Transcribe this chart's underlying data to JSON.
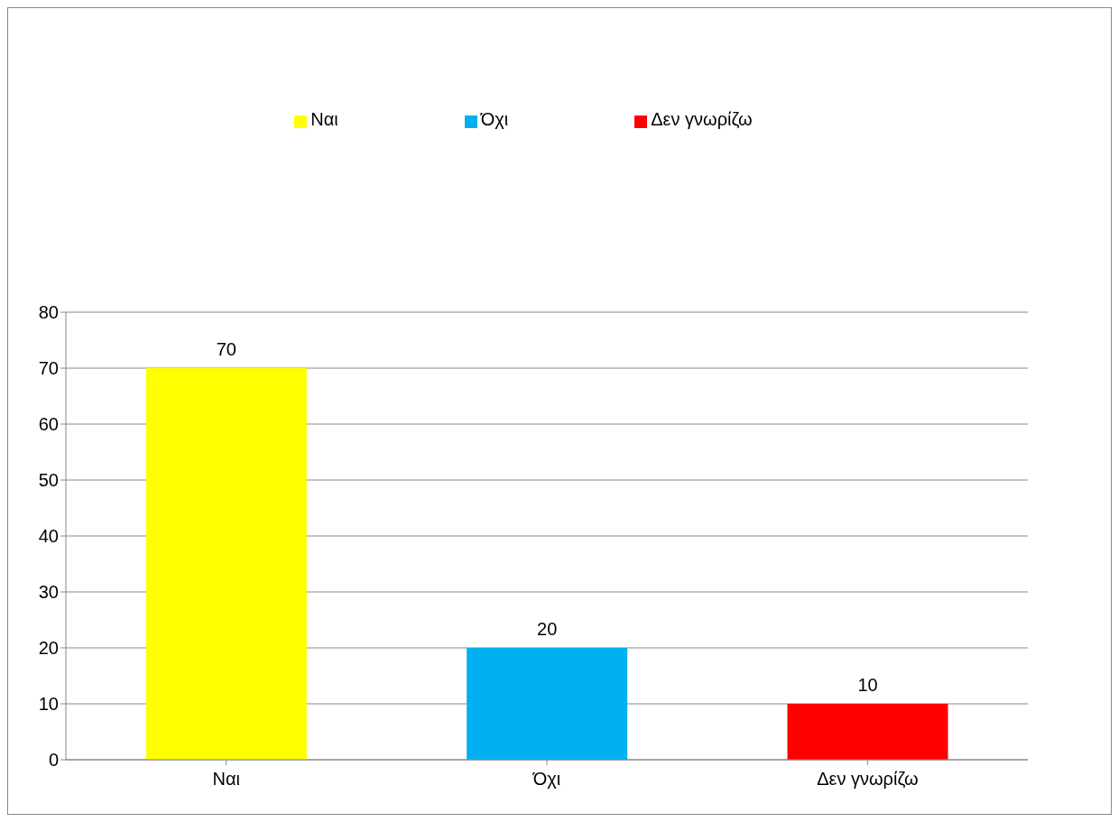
{
  "chart_data": {
    "type": "bar",
    "categories": [
      "Ναι",
      "Όχι",
      "Δεν γνωρίζω"
    ],
    "stacked": true,
    "series": [
      {
        "name": "Ναι",
        "color": "#ffff00",
        "values": [
          70,
          null,
          null
        ]
      },
      {
        "name": "Όχι",
        "color": "#00b0f0",
        "values": [
          null,
          20,
          null
        ]
      },
      {
        "name": "Δεν γνωρίζω",
        "color": "#ff0000",
        "values": [
          null,
          null,
          10
        ]
      }
    ],
    "ylim": [
      0,
      80
    ],
    "yticks": [
      0,
      10,
      20,
      30,
      40,
      50,
      60,
      70,
      80
    ],
    "grid": "y",
    "legend": "top",
    "data_labels": true
  }
}
